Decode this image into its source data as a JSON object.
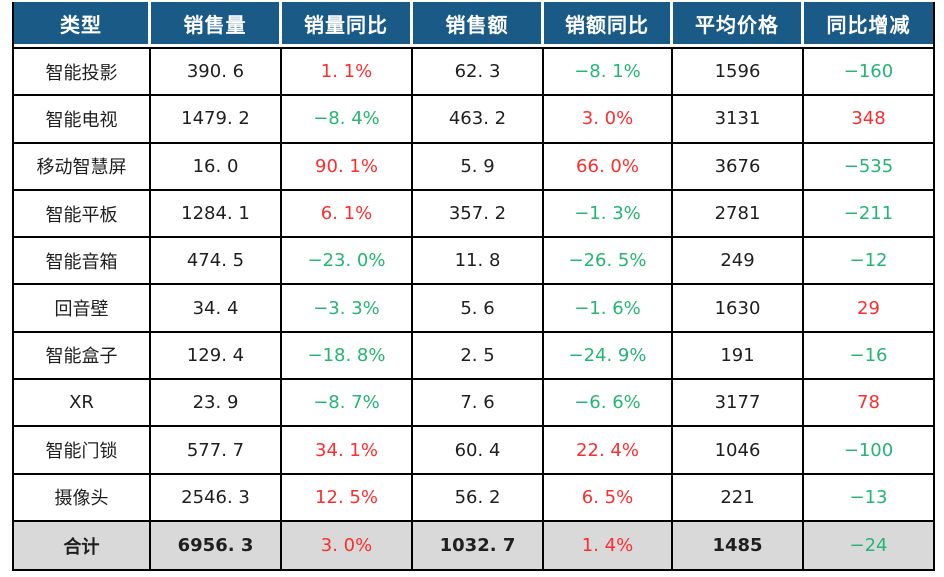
{
  "colors": {
    "header_bg": "#1A5A86",
    "header_text": "#FFFFFF",
    "positive_red": "#FB2E2E",
    "negative_green": "#25B575",
    "total_row_bg": "#D9D9D9",
    "grid_border": "#000000",
    "body_text": "#1F1F1F"
  },
  "table": {
    "columns": [
      "类型",
      "销售量",
      "销量同比",
      "销售额",
      "销额同比",
      "平均价格",
      "同比增减"
    ],
    "rows": [
      {
        "cells": [
          {
            "text": "智能投影",
            "color": "black"
          },
          {
            "text": "390. 6",
            "color": "black"
          },
          {
            "text": "1. 1%",
            "color": "red"
          },
          {
            "text": "62. 3",
            "color": "black"
          },
          {
            "text": "−8. 1%",
            "color": "green"
          },
          {
            "text": "1596",
            "color": "black"
          },
          {
            "text": "−160",
            "color": "green"
          }
        ]
      },
      {
        "cells": [
          {
            "text": "智能电视",
            "color": "black"
          },
          {
            "text": "1479. 2",
            "color": "black"
          },
          {
            "text": "−8. 4%",
            "color": "green"
          },
          {
            "text": "463. 2",
            "color": "black"
          },
          {
            "text": "3. 0%",
            "color": "red"
          },
          {
            "text": "3131",
            "color": "black"
          },
          {
            "text": "348",
            "color": "red"
          }
        ]
      },
      {
        "cells": [
          {
            "text": "移动智慧屏",
            "color": "black"
          },
          {
            "text": "16. 0",
            "color": "black"
          },
          {
            "text": "90. 1%",
            "color": "red"
          },
          {
            "text": "5. 9",
            "color": "black"
          },
          {
            "text": "66. 0%",
            "color": "red"
          },
          {
            "text": "3676",
            "color": "black"
          },
          {
            "text": "−535",
            "color": "green"
          }
        ]
      },
      {
        "cells": [
          {
            "text": "智能平板",
            "color": "black"
          },
          {
            "text": "1284. 1",
            "color": "black"
          },
          {
            "text": "6. 1%",
            "color": "red"
          },
          {
            "text": "357. 2",
            "color": "black"
          },
          {
            "text": "−1. 3%",
            "color": "green"
          },
          {
            "text": "2781",
            "color": "black"
          },
          {
            "text": "−211",
            "color": "green"
          }
        ]
      },
      {
        "cells": [
          {
            "text": "智能音箱",
            "color": "black"
          },
          {
            "text": "474. 5",
            "color": "black"
          },
          {
            "text": "−23. 0%",
            "color": "green"
          },
          {
            "text": "11. 8",
            "color": "black"
          },
          {
            "text": "−26. 5%",
            "color": "green"
          },
          {
            "text": "249",
            "color": "black"
          },
          {
            "text": "−12",
            "color": "green"
          }
        ]
      },
      {
        "cells": [
          {
            "text": "回音壁",
            "color": "black"
          },
          {
            "text": "34. 4",
            "color": "black"
          },
          {
            "text": "−3. 3%",
            "color": "green"
          },
          {
            "text": "5. 6",
            "color": "black"
          },
          {
            "text": "−1. 6%",
            "color": "green"
          },
          {
            "text": "1630",
            "color": "black"
          },
          {
            "text": "29",
            "color": "red"
          }
        ]
      },
      {
        "cells": [
          {
            "text": "智能盒子",
            "color": "black"
          },
          {
            "text": "129. 4",
            "color": "black"
          },
          {
            "text": "−18. 8%",
            "color": "green"
          },
          {
            "text": "2. 5",
            "color": "black"
          },
          {
            "text": "−24. 9%",
            "color": "green"
          },
          {
            "text": "191",
            "color": "black"
          },
          {
            "text": "−16",
            "color": "green"
          }
        ]
      },
      {
        "cells": [
          {
            "text": "XR",
            "color": "black"
          },
          {
            "text": "23. 9",
            "color": "black"
          },
          {
            "text": "−8. 7%",
            "color": "green"
          },
          {
            "text": "7. 6",
            "color": "black"
          },
          {
            "text": "−6. 6%",
            "color": "green"
          },
          {
            "text": "3177",
            "color": "black"
          },
          {
            "text": "78",
            "color": "red"
          }
        ]
      },
      {
        "cells": [
          {
            "text": "智能门锁",
            "color": "black"
          },
          {
            "text": "577. 7",
            "color": "black"
          },
          {
            "text": "34. 1%",
            "color": "red"
          },
          {
            "text": "60. 4",
            "color": "black"
          },
          {
            "text": "22. 4%",
            "color": "red"
          },
          {
            "text": "1046",
            "color": "black"
          },
          {
            "text": "−100",
            "color": "green"
          }
        ]
      },
      {
        "cells": [
          {
            "text": "摄像头",
            "color": "black"
          },
          {
            "text": "2546. 3",
            "color": "black"
          },
          {
            "text": "12. 5%",
            "color": "red"
          },
          {
            "text": "56. 2",
            "color": "black"
          },
          {
            "text": "6. 5%",
            "color": "red"
          },
          {
            "text": "221",
            "color": "black"
          },
          {
            "text": "−13",
            "color": "green"
          }
        ]
      },
      {
        "is_total": true,
        "cells": [
          {
            "text": "合计",
            "color": "black",
            "bold": true
          },
          {
            "text": "6956. 3",
            "color": "black",
            "bold": true
          },
          {
            "text": "3. 0%",
            "color": "red"
          },
          {
            "text": "1032. 7",
            "color": "black",
            "bold": true
          },
          {
            "text": "1. 4%",
            "color": "red"
          },
          {
            "text": "1485",
            "color": "black",
            "bold": true
          },
          {
            "text": "−24",
            "color": "green"
          }
        ]
      }
    ]
  },
  "chart_data": {
    "type": "table",
    "columns": [
      "类型",
      "销售量",
      "销量同比",
      "销售额",
      "销额同比",
      "平均价格",
      "同比增减"
    ],
    "rows": [
      [
        "智能投影",
        390.6,
        "1.1%",
        62.3,
        "-8.1%",
        1596,
        -160
      ],
      [
        "智能电视",
        1479.2,
        "-8.4%",
        463.2,
        "3.0%",
        3131,
        348
      ],
      [
        "移动智慧屏",
        16.0,
        "90.1%",
        5.9,
        "66.0%",
        3676,
        -535
      ],
      [
        "智能平板",
        1284.1,
        "6.1%",
        357.2,
        "-1.3%",
        2781,
        -211
      ],
      [
        "智能音箱",
        474.5,
        "-23.0%",
        11.8,
        "-26.5%",
        249,
        -12
      ],
      [
        "回音壁",
        34.4,
        "-3.3%",
        5.6,
        "-1.6%",
        1630,
        29
      ],
      [
        "智能盒子",
        129.4,
        "-18.8%",
        2.5,
        "-24.9%",
        191,
        -16
      ],
      [
        "XR",
        23.9,
        "-8.7%",
        7.6,
        "-6.6%",
        3177,
        78
      ],
      [
        "智能门锁",
        577.7,
        "34.1%",
        60.4,
        "22.4%",
        1046,
        -100
      ],
      [
        "摄像头",
        2546.3,
        "12.5%",
        56.2,
        "6.5%",
        221,
        -13
      ],
      [
        "合计",
        6956.3,
        "3.0%",
        1032.7,
        "1.4%",
        1485,
        -24
      ]
    ],
    "notes": "positive values shown in red, negative values shown in green; last row is totals with gray background"
  }
}
